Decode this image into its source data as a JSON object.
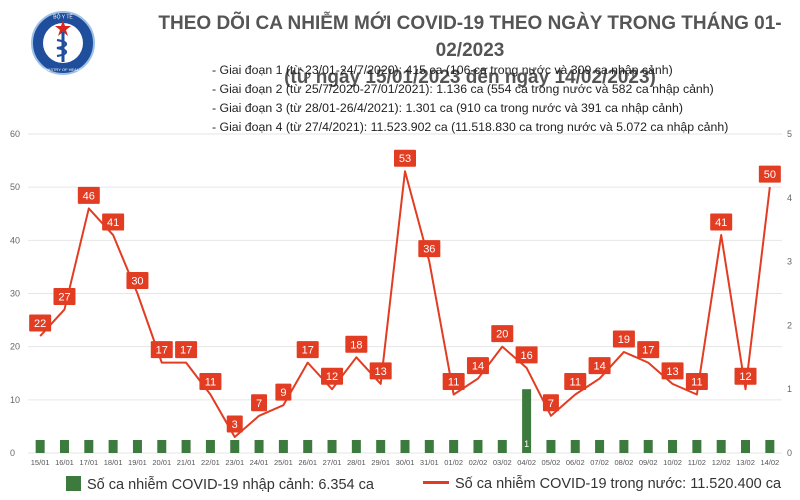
{
  "header": {
    "logo_text_top": "BỘ Y TẾ",
    "logo_text_bottom": "MINISTRY OF HEALTH",
    "title_line1": "THEO DÕI CA NHIỄM MỚI COVID-19 THEO NGÀY TRONG THÁNG 01-02/2023",
    "title_line2": "(từ ngày 15/01/2023 đến ngày 14/02/2023)"
  },
  "notes": [
    "- Giai đoạn 1 (từ 23/01-24/7/2020): 415 ca (106 ca trong nước và 309 ca nhập cảnh)",
    "- Giai đoạn 2 (từ 25/7/2020-27/01/2021): 1.136 ca (554 ca trong nước và 582 ca nhập cảnh)",
    "- Giai đoạn 3 (từ 28/01-26/4/2021): 1.301 ca (910 ca trong nước và 391 ca nhập cảnh)",
    "- Giai đoạn 4 (từ 27/4/2021): 11.523.902 ca (11.518.830 ca trong nước và 5.072 ca nhập cảnh)"
  ],
  "legend": {
    "imported": "Số ca nhiễm COVID-19 nhập cảnh: 6.354 ca",
    "domestic": "Số ca nhiễm COVID-19 trong nước: 11.520.400 ca"
  },
  "colors": {
    "bar": "#3d7a3d",
    "line": "#e23c22",
    "label_bg": "#e23c22",
    "grid": "#e6e6e6"
  },
  "chart_data": {
    "type": "bar+line",
    "categories": [
      "15/01",
      "16/01",
      "17/01",
      "18/01",
      "19/01",
      "20/01",
      "21/01",
      "22/01",
      "23/01",
      "24/01",
      "25/01",
      "26/01",
      "27/01",
      "28/01",
      "29/01",
      "30/01",
      "31/01",
      "01/02",
      "02/02",
      "03/02",
      "04/02",
      "05/02",
      "06/02",
      "07/02",
      "08/02",
      "09/02",
      "10/02",
      "11/02",
      "12/02",
      "13/02",
      "14/02"
    ],
    "series": [
      {
        "name": "Số ca nhiễm COVID-19 trong nước",
        "type": "line",
        "axis": "left",
        "values": [
          22,
          27,
          46,
          41,
          30,
          17,
          17,
          11,
          3,
          7,
          9,
          17,
          12,
          18,
          13,
          53,
          36,
          11,
          14,
          20,
          16,
          7,
          11,
          14,
          19,
          17,
          13,
          11,
          41,
          12,
          50
        ]
      },
      {
        "name": "Số ca nhiễm COVID-19 nhập cảnh",
        "type": "bar",
        "axis": "right",
        "values": [
          0,
          0,
          0,
          0,
          0,
          0,
          0,
          0,
          0,
          0,
          0,
          0,
          0,
          0,
          0,
          0,
          0,
          0,
          0,
          0,
          1,
          0,
          0,
          0,
          0,
          0,
          0,
          0,
          0,
          0,
          0
        ],
        "data_labels": [
          "",
          "",
          "",
          "",
          "",
          "",
          "",
          "",
          "",
          "",
          "",
          "",
          "",
          "",
          "",
          "",
          "",
          "",
          "",
          "",
          "1",
          "",
          "",
          "",
          "",
          "",
          "",
          "",
          "",
          "",
          ""
        ]
      }
    ],
    "y_left": {
      "range": [
        0,
        60
      ],
      "ticks": [
        "0",
        "10",
        "20",
        "30",
        "40",
        "50",
        "60"
      ]
    },
    "y_right": {
      "range": [
        0,
        5
      ],
      "ticks": [
        "0",
        "1",
        "2",
        "3",
        "4",
        "5"
      ]
    },
    "grid": true,
    "legend_position": "bottom"
  }
}
